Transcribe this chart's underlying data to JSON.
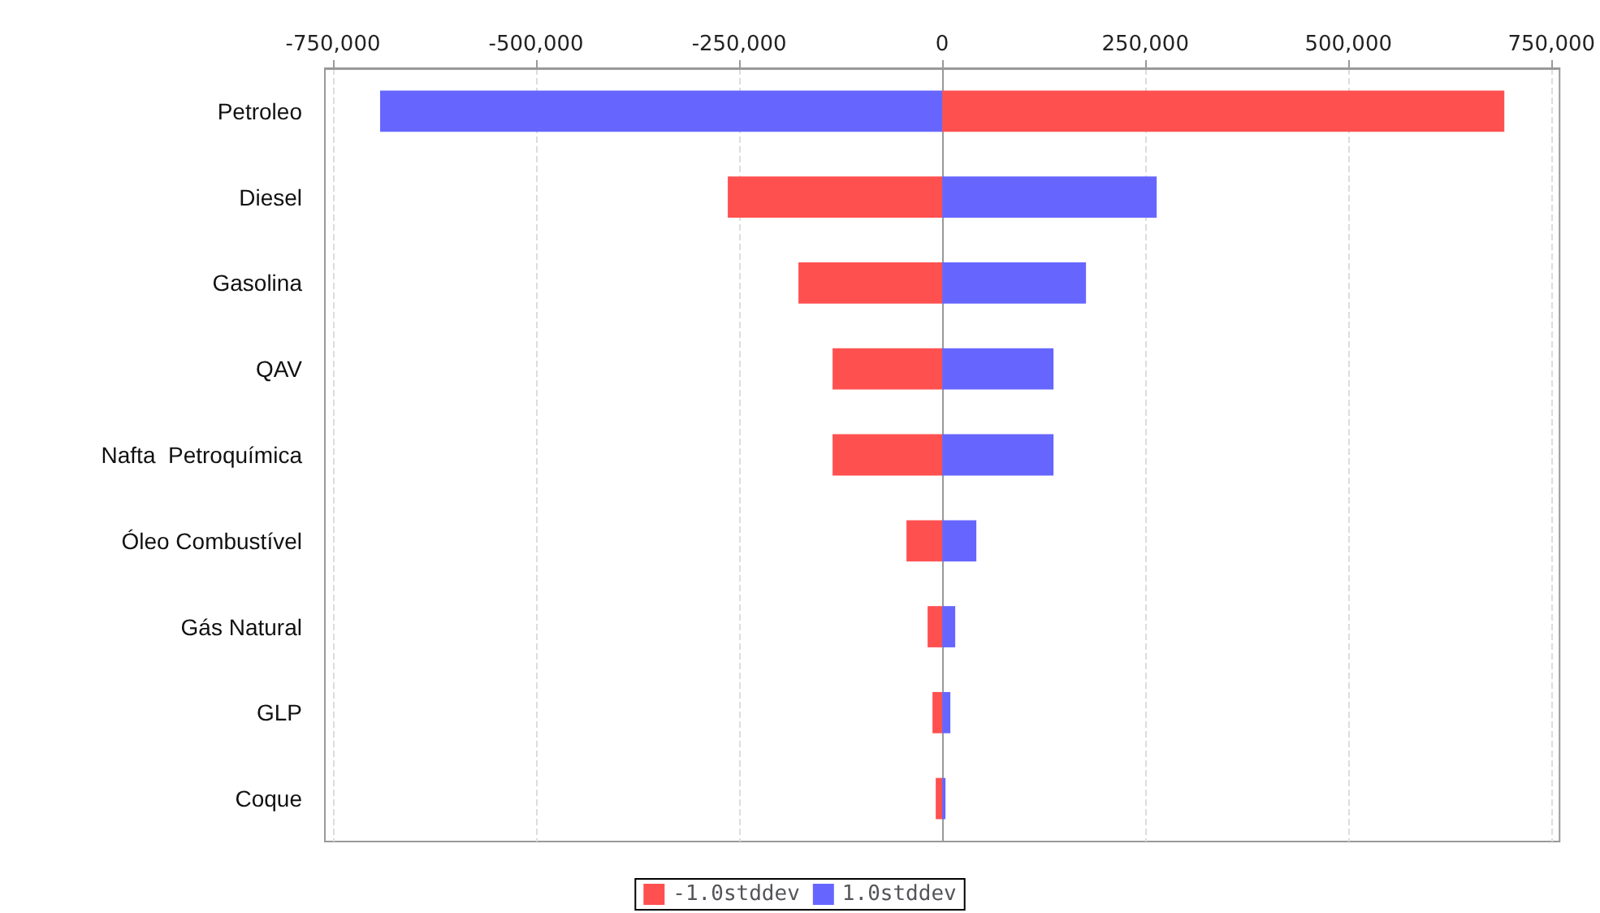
{
  "chart_data": {
    "type": "bar",
    "orientation": "horizontal",
    "stacked": true,
    "categories": [
      "Petroleo",
      "Diesel",
      "Gasolina",
      "QAV",
      "Nafta  Petroquímica",
      "Óleo Combustível",
      "Gás Natural",
      "GLP",
      "Coque"
    ],
    "series": [
      {
        "name": "-1.0stddev",
        "color": "#ff5050",
        "values": [
          692000,
          -264000,
          -177000,
          -135000,
          -135000,
          -44000,
          -18000,
          -12000,
          -8000
        ]
      },
      {
        "name": "1.0stddev",
        "color": "#6666ff",
        "values": [
          -692000,
          264000,
          177000,
          137000,
          137000,
          42000,
          16000,
          10000,
          4000
        ]
      }
    ],
    "xlim": [
      -760000,
      760000
    ],
    "xticks": [
      {
        "value": -750000,
        "label": "-750,000"
      },
      {
        "value": -500000,
        "label": "-500,000"
      },
      {
        "value": -250000,
        "label": "-250,000"
      },
      0,
      {
        "value": 250000,
        "label": "250,000"
      },
      {
        "value": 500000,
        "label": "500,000"
      },
      {
        "value": 750000,
        "label": "750,000"
      }
    ],
    "grid": "x",
    "legend": "bottom"
  }
}
